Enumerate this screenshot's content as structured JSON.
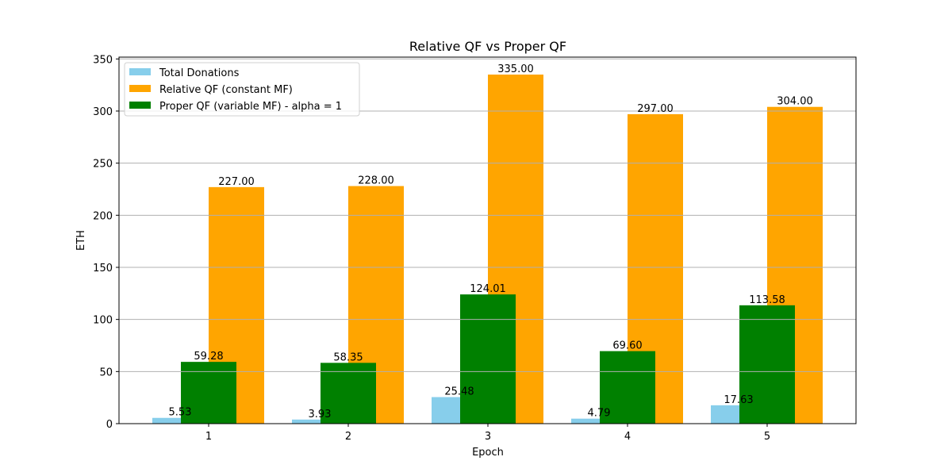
{
  "chart_data": {
    "type": "bar",
    "title": "Relative QF vs Proper QF",
    "xlabel": "Epoch",
    "ylabel": "ETH",
    "categories": [
      "1",
      "2",
      "3",
      "4",
      "5"
    ],
    "series": [
      {
        "name": "Total Donations",
        "color": "#87ceeb",
        "values": [
          5.53,
          3.93,
          25.48,
          4.79,
          17.63
        ]
      },
      {
        "name": "Relative QF (constant MF)",
        "color": "#ffa500",
        "values": [
          227.0,
          228.0,
          335.0,
          297.0,
          304.0
        ]
      },
      {
        "name": "Proper QF (variable MF) - alpha = 1",
        "color": "#008000",
        "values": [
          59.28,
          58.35,
          124.01,
          69.6,
          113.58
        ]
      }
    ],
    "yticks": [
      0,
      50,
      100,
      150,
      200,
      250,
      300,
      350
    ],
    "ylim": [
      0,
      351.75
    ],
    "grid": {
      "axis": "y",
      "color": "#b0b0b0"
    },
    "legend": {
      "position": "upper left"
    },
    "value_label_format": "2 decimals"
  }
}
